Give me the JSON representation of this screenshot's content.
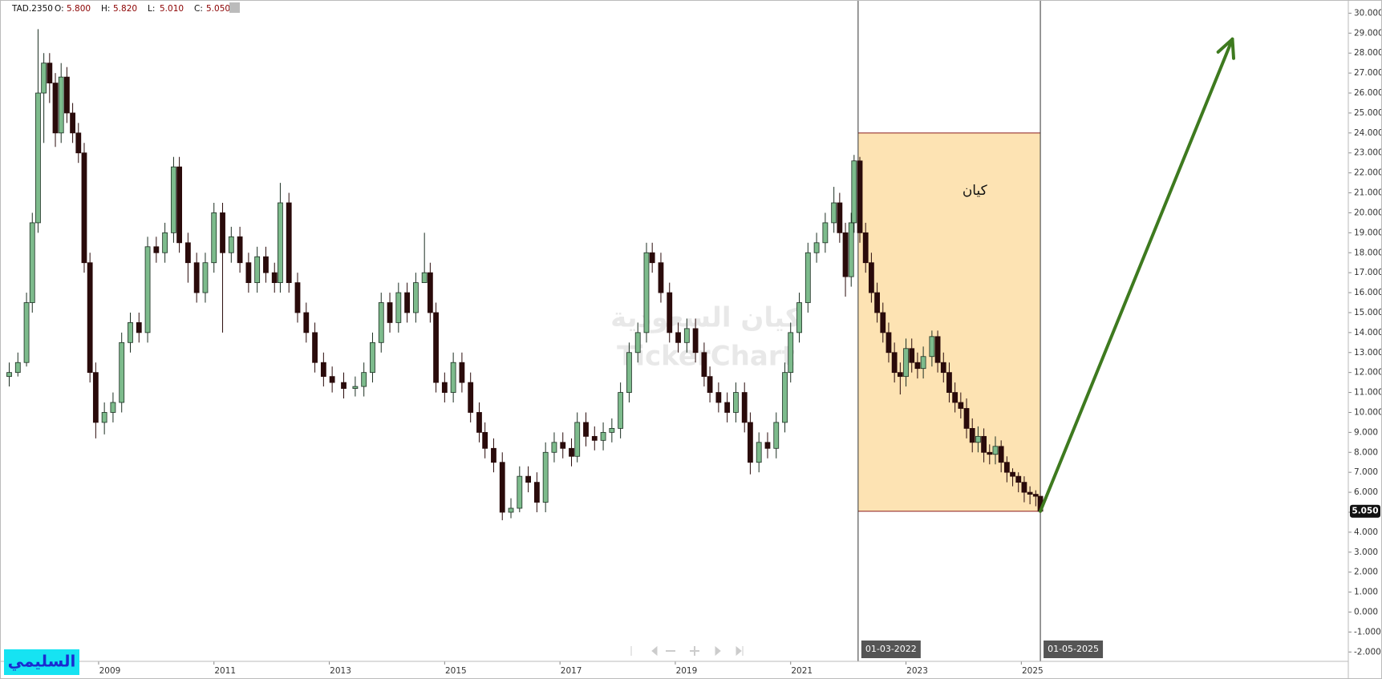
{
  "chart_data": {
    "type": "candlestick",
    "symbol": "TAD.2350",
    "header": [
      {
        "name": "O:",
        "value": 5.8,
        "label": "5.800"
      },
      {
        "name": "H:",
        "value": 5.82,
        "label": "5.820"
      },
      {
        "name": "L:",
        "value": 5.01,
        "label": "5.010"
      },
      {
        "name": "C:",
        "value": 5.05,
        "label": "5.050"
      }
    ],
    "last": {
      "value": 5.05,
      "label": "5.050"
    },
    "up_color": "#7dbb8c",
    "down_color": "#2a0b0b",
    "edge_color": "#1c2f22",
    "x": [
      2007.45,
      2007.6,
      2007.75,
      2007.85,
      2007.95,
      2008.05,
      2008.15,
      2008.25,
      2008.35,
      2008.45,
      2008.55,
      2008.65,
      2008.75,
      2008.85,
      2008.95,
      2009.1,
      2009.25,
      2009.4,
      2009.55,
      2009.7,
      2009.85,
      2010.0,
      2010.15,
      2010.3,
      2010.4,
      2010.55,
      2010.7,
      2010.85,
      2011.0,
      2011.15,
      2011.3,
      2011.45,
      2011.6,
      2011.75,
      2011.9,
      2012.05,
      2012.15,
      2012.3,
      2012.45,
      2012.6,
      2012.75,
      2012.9,
      2013.05,
      2013.25,
      2013.45,
      2013.6,
      2013.75,
      2013.9,
      2014.05,
      2014.2,
      2014.35,
      2014.5,
      2014.65,
      2014.75,
      2014.85,
      2015.0,
      2015.15,
      2015.3,
      2015.45,
      2015.6,
      2015.7,
      2015.85,
      2016.0,
      2016.15,
      2016.3,
      2016.45,
      2016.6,
      2016.75,
      2016.9,
      2017.05,
      2017.2,
      2017.3,
      2017.45,
      2017.6,
      2017.75,
      2017.9,
      2018.05,
      2018.2,
      2018.35,
      2018.5,
      2018.6,
      2018.75,
      2018.9,
      2019.05,
      2019.2,
      2019.35,
      2019.5,
      2019.6,
      2019.75,
      2019.9,
      2020.05,
      2020.2,
      2020.3,
      2020.45,
      2020.6,
      2020.75,
      2020.9,
      2021.0,
      2021.15,
      2021.3,
      2021.45,
      2021.6,
      2021.75,
      2021.85,
      2021.95,
      2022.05,
      2022.1,
      2022.2,
      2022.3,
      2022.4,
      2022.5,
      2022.6,
      2022.7,
      2022.8,
      2022.9,
      2023.0,
      2023.1,
      2023.2,
      2023.3,
      2023.45,
      2023.55,
      2023.65,
      2023.75,
      2023.85,
      2023.95,
      2024.05,
      2024.15,
      2024.25,
      2024.35,
      2024.45,
      2024.55,
      2024.65,
      2024.75,
      2024.85,
      2024.95,
      2025.05,
      2025.15,
      2025.25,
      2025.33
    ],
    "open": [
      11.8,
      12.0,
      12.5,
      15.5,
      19.5,
      26,
      27.5,
      26.5,
      24,
      26.8,
      25,
      24,
      23,
      17.5,
      12,
      9.5,
      10,
      10.5,
      13.5,
      14.5,
      14,
      18.3,
      18,
      19,
      22.3,
      18.5,
      17.5,
      16,
      17.5,
      20,
      18,
      18.8,
      17.5,
      16.5,
      17.8,
      17,
      16.5,
      20.5,
      16.5,
      15,
      14,
      12.5,
      11.8,
      11.5,
      11.2,
      11.3,
      12,
      13.5,
      15.5,
      14.5,
      16,
      15,
      16.5,
      17,
      15,
      11.5,
      11,
      12.5,
      11.5,
      10,
      9,
      8.2,
      7.5,
      5,
      5.2,
      6.8,
      6.5,
      5.5,
      8,
      8.5,
      8.2,
      7.8,
      9.5,
      8.8,
      8.6,
      9,
      9.2,
      11,
      13,
      14,
      18,
      17.5,
      16,
      14,
      13.5,
      14.2,
      13,
      11.8,
      11,
      10.5,
      10,
      11,
      9.5,
      7.5,
      8.5,
      8.2,
      9.5,
      12,
      14,
      15.5,
      18,
      18.5,
      19.5,
      20.5,
      19,
      16.8,
      19.5,
      22.6,
      19,
      17.5,
      16,
      15,
      14,
      13,
      12,
      11.8,
      13.2,
      12.5,
      12.2,
      12.8,
      13.8,
      12.5,
      12,
      11,
      10.5,
      10.2,
      9.2,
      8.5,
      8.8,
      8,
      7.9,
      8.3,
      7.5,
      7,
      6.8,
      6.5,
      6,
      5.9,
      5.8
    ],
    "high": [
      12.5,
      13,
      16,
      20,
      29.2,
      28,
      28,
      27,
      27.5,
      27.3,
      25.5,
      24.5,
      23.5,
      18,
      12.5,
      10.5,
      11,
      14,
      15,
      15,
      18.8,
      18.8,
      19.5,
      22.8,
      22.8,
      19,
      18,
      18,
      20.5,
      20.5,
      19.3,
      19.3,
      18,
      18.3,
      18.3,
      17.5,
      21.5,
      21,
      17,
      15.5,
      14.5,
      13,
      12.3,
      12,
      11.8,
      12.5,
      14,
      16,
      16,
      16.5,
      16.5,
      17,
      19,
      17.5,
      15.5,
      12,
      13,
      13,
      12,
      10.5,
      9.5,
      8.7,
      8,
      5.7,
      7.3,
      7.3,
      7,
      8.5,
      9,
      9,
      8.7,
      10,
      10,
      9.3,
      9.5,
      9.7,
      11.5,
      13.5,
      14.5,
      18.5,
      18.5,
      18,
      16.5,
      14.5,
      14.7,
      14.7,
      13.5,
      12.3,
      11.5,
      11,
      11.5,
      11.5,
      10,
      9,
      9,
      10,
      12.5,
      14.5,
      16,
      18.5,
      19,
      20,
      21.3,
      21,
      19.5,
      20,
      22.9,
      22.8,
      19.5,
      18,
      16.5,
      15.5,
      14.5,
      13.5,
      12.5,
      13.7,
      13.7,
      13,
      13.3,
      14.1,
      14.1,
      13,
      12.5,
      11.5,
      11,
      10.7,
      9.7,
      9.3,
      9.2,
      8.4,
      8.8,
      8.6,
      7.8,
      7.2,
      7,
      6.8,
      6.3,
      6.1,
      5.82
    ],
    "low": [
      11.3,
      11.8,
      12.3,
      15,
      19,
      23.5,
      25.5,
      23.3,
      23.5,
      24.5,
      23.5,
      22.5,
      17,
      11.5,
      8.7,
      8.9,
      9.5,
      10,
      13,
      13.5,
      13.5,
      17.5,
      17.5,
      18.5,
      18,
      16.5,
      15.5,
      15.5,
      17,
      14,
      17.5,
      17,
      16,
      16,
      16.5,
      16,
      16,
      16,
      14.5,
      13.5,
      12,
      11.3,
      11,
      10.7,
      10.8,
      10.8,
      11.5,
      13,
      14,
      14,
      14.5,
      14.5,
      16.5,
      14.5,
      11,
      10.5,
      10.5,
      11,
      9.5,
      8.5,
      7.7,
      7,
      4.6,
      4.7,
      5,
      6,
      5,
      5,
      7.5,
      7.7,
      7.3,
      7.5,
      8.3,
      8.1,
      8.1,
      8.5,
      8.7,
      10.5,
      12.5,
      13.5,
      17,
      15.5,
      13.5,
      13,
      13,
      12.5,
      11.3,
      10.5,
      10,
      9.5,
      9.5,
      9,
      6.9,
      7,
      7.7,
      7.7,
      9,
      11.5,
      13.5,
      15,
      17.5,
      18,
      19,
      18.5,
      15.8,
      16.3,
      19,
      18.5,
      17,
      15.5,
      14.5,
      13.5,
      12.5,
      11.5,
      10.9,
      11.3,
      12,
      11.7,
      11.7,
      12.3,
      12,
      11.5,
      10.5,
      10,
      9.7,
      8.7,
      8,
      8,
      7.5,
      7.4,
      7.4,
      7,
      6.5,
      6.3,
      6,
      5.5,
      5.4,
      5.3,
      5.01
    ],
    "close": [
      12.0,
      12.5,
      15.5,
      19.5,
      26,
      27.5,
      26.5,
      24,
      26.8,
      25,
      24,
      23,
      17.5,
      12,
      9.5,
      10,
      10.5,
      13.5,
      14.5,
      14,
      18.3,
      18,
      19,
      22.3,
      18.5,
      17.5,
      16,
      17.5,
      20,
      18,
      18.8,
      17.5,
      16.5,
      17.8,
      17,
      16.5,
      20.5,
      16.5,
      15,
      14,
      12.5,
      11.8,
      11.5,
      11.2,
      11.3,
      12,
      13.5,
      15.5,
      14.5,
      16,
      15,
      16.5,
      17,
      15,
      11.5,
      11,
      12.5,
      11.5,
      10,
      9,
      8.2,
      7.5,
      5,
      5.2,
      6.8,
      6.5,
      5.5,
      8,
      8.5,
      8.2,
      7.8,
      9.5,
      8.8,
      8.6,
      9,
      9.2,
      11,
      13,
      14,
      18,
      17.5,
      16,
      14,
      13.5,
      14.2,
      13,
      11.8,
      11,
      10.5,
      10,
      11,
      9.5,
      7.5,
      8.5,
      8.2,
      9.5,
      12,
      14,
      15.5,
      18,
      18.5,
      19.5,
      20.5,
      19,
      16.8,
      19.5,
      22.6,
      19,
      17.5,
      16,
      15,
      14,
      13,
      12,
      11.8,
      13.2,
      12.5,
      12.2,
      12.8,
      13.8,
      12.5,
      12,
      11,
      10.5,
      10.2,
      9.2,
      8.5,
      8.8,
      8,
      7.9,
      8.3,
      7.5,
      7,
      6.8,
      6.5,
      6,
      5.9,
      5.8,
      5.05
    ],
    "xlim": [
      2007.29,
      2030.67
    ],
    "xticks": [
      2009,
      2011,
      2013,
      2015,
      2017,
      2019,
      2021,
      2023,
      2025
    ],
    "ylim": [
      -2.47,
      30.66
    ],
    "yticks": [
      {
        "value": 30,
        "label": "30.000"
      },
      {
        "value": 29,
        "label": "29.000"
      },
      {
        "value": 28,
        "label": "28.000"
      },
      {
        "value": 27,
        "label": "27.000"
      },
      {
        "value": 26,
        "label": "26.000"
      },
      {
        "value": 25,
        "label": "25.000"
      },
      {
        "value": 24,
        "label": "24.000"
      },
      {
        "value": 23,
        "label": "23.000"
      },
      {
        "value": 22,
        "label": "22.000"
      },
      {
        "value": 21,
        "label": "21.000"
      },
      {
        "value": 20,
        "label": "20.000"
      },
      {
        "value": 19,
        "label": "19.000"
      },
      {
        "value": 18,
        "label": "18.000"
      },
      {
        "value": 17,
        "label": "17.000"
      },
      {
        "value": 16,
        "label": "16.000"
      },
      {
        "value": 15,
        "label": "15.000"
      },
      {
        "value": 14,
        "label": "14.000"
      },
      {
        "value": 13,
        "label": "13.000"
      },
      {
        "value": 12,
        "label": "12.000"
      },
      {
        "value": 11,
        "label": "11.000"
      },
      {
        "value": 10,
        "label": "10.000"
      },
      {
        "value": 9,
        "label": "9.000"
      },
      {
        "value": 8,
        "label": "8.000"
      },
      {
        "value": 7,
        "label": "7.000"
      },
      {
        "value": 6,
        "label": "6.000"
      },
      {
        "value": 5,
        "label": "5.000"
      },
      {
        "value": 4,
        "label": "4.000"
      },
      {
        "value": 3,
        "label": "3.000"
      },
      {
        "value": 2,
        "label": "2.000"
      },
      {
        "value": 1,
        "label": "1.000"
      },
      {
        "value": 0,
        "label": "0.000"
      },
      {
        "value": -1,
        "label": "-1.000"
      },
      {
        "value": -2,
        "label": "-2.000"
      }
    ],
    "vlines": [
      {
        "x": 2022.17,
        "label": "01-03-2022"
      },
      {
        "x": 2025.33,
        "label": "01-05-2025"
      }
    ],
    "zone": {
      "x": [
        2022.17,
        2025.33
      ],
      "y": [
        5.05,
        24.0
      ],
      "label": "كيان",
      "color": "#fde3b3",
      "edge": "#8b1a1a"
    },
    "arrow": {
      "x": [
        2025.33,
        2028.66
      ],
      "y": [
        5.05,
        28.7
      ],
      "color": "#3e7a1f"
    },
    "watermark": [
      "كيان السعودية",
      "TickerChart"
    ],
    "logo": "السليمي"
  }
}
